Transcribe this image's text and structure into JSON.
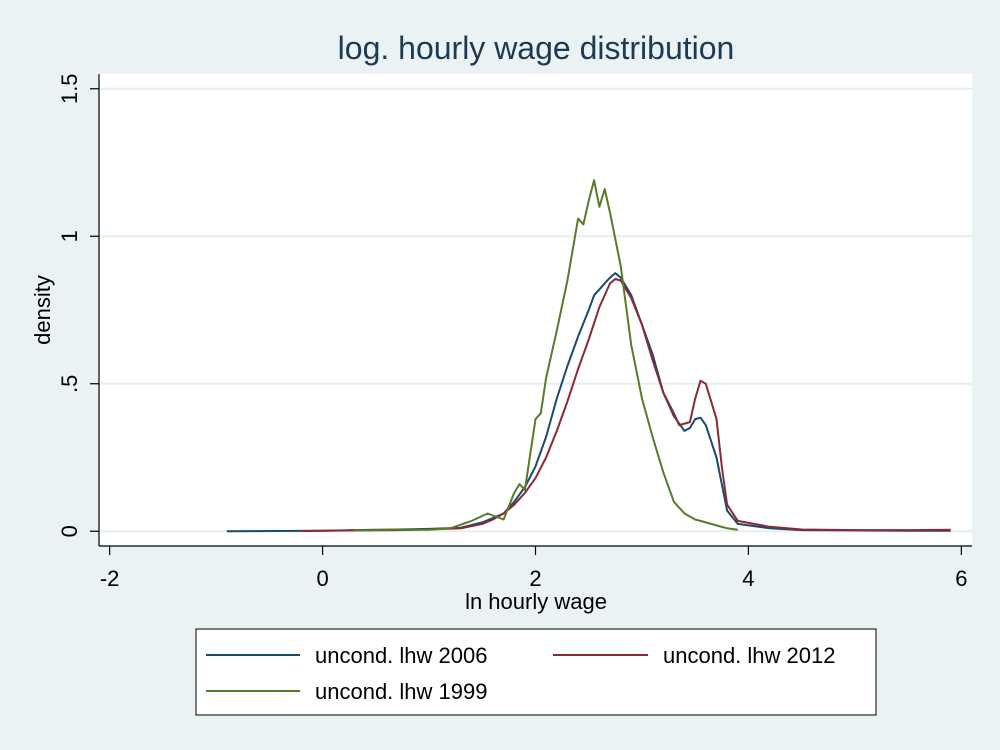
{
  "chart_data": {
    "type": "line",
    "title": "log. hourly wage distribution",
    "xlabel": "ln hourly wage",
    "ylabel": "density",
    "xlim": [
      -2.1,
      6.1
    ],
    "ylim": [
      -0.05,
      1.55
    ],
    "x_ticks": [
      -2,
      0,
      2,
      4,
      6
    ],
    "x_tick_labels": [
      "-2",
      "0",
      "2",
      "4",
      "6"
    ],
    "y_ticks": [
      0,
      0.5,
      1,
      1.5
    ],
    "y_tick_labels": [
      "0",
      ".5",
      "1",
      "1.5"
    ],
    "grid": "horizontal",
    "legend_position": "bottom",
    "colors": {
      "background": "#eaf2f3",
      "plot_area": "#ffffff",
      "grid": "#e6efef",
      "series_2006": "#1a4a6e",
      "series_2012": "#8b2a35",
      "series_1999": "#5a7a2a"
    },
    "series": [
      {
        "name": "uncond. lhw 2006",
        "color": "#1a4a6e",
        "points": [
          [
            -0.9,
            0.0
          ],
          [
            0.0,
            0.002
          ],
          [
            0.5,
            0.005
          ],
          [
            1.0,
            0.008
          ],
          [
            1.3,
            0.012
          ],
          [
            1.5,
            0.03
          ],
          [
            1.6,
            0.045
          ],
          [
            1.7,
            0.06
          ],
          [
            1.8,
            0.1
          ],
          [
            1.9,
            0.15
          ],
          [
            2.0,
            0.22
          ],
          [
            2.1,
            0.32
          ],
          [
            2.2,
            0.45
          ],
          [
            2.3,
            0.56
          ],
          [
            2.4,
            0.66
          ],
          [
            2.5,
            0.75
          ],
          [
            2.55,
            0.8
          ],
          [
            2.6,
            0.82
          ],
          [
            2.65,
            0.84
          ],
          [
            2.7,
            0.86
          ],
          [
            2.75,
            0.875
          ],
          [
            2.8,
            0.86
          ],
          [
            2.9,
            0.8
          ],
          [
            3.0,
            0.7
          ],
          [
            3.1,
            0.6
          ],
          [
            3.2,
            0.47
          ],
          [
            3.3,
            0.39
          ],
          [
            3.4,
            0.34
          ],
          [
            3.45,
            0.35
          ],
          [
            3.5,
            0.38
          ],
          [
            3.55,
            0.385
          ],
          [
            3.6,
            0.36
          ],
          [
            3.7,
            0.25
          ],
          [
            3.8,
            0.07
          ],
          [
            3.9,
            0.025
          ],
          [
            4.2,
            0.01
          ],
          [
            4.5,
            0.004
          ],
          [
            5.0,
            0.003
          ],
          [
            5.5,
            0.002
          ],
          [
            5.9,
            0.002
          ]
        ]
      },
      {
        "name": "uncond. lhw 2012",
        "color": "#8b2a35",
        "points": [
          [
            -0.2,
            0.001
          ],
          [
            0.3,
            0.003
          ],
          [
            0.7,
            0.004
          ],
          [
            1.0,
            0.006
          ],
          [
            1.3,
            0.01
          ],
          [
            1.5,
            0.025
          ],
          [
            1.6,
            0.04
          ],
          [
            1.7,
            0.06
          ],
          [
            1.8,
            0.09
          ],
          [
            1.9,
            0.13
          ],
          [
            2.0,
            0.18
          ],
          [
            2.1,
            0.25
          ],
          [
            2.2,
            0.34
          ],
          [
            2.3,
            0.44
          ],
          [
            2.4,
            0.55
          ],
          [
            2.5,
            0.65
          ],
          [
            2.6,
            0.76
          ],
          [
            2.7,
            0.84
          ],
          [
            2.75,
            0.855
          ],
          [
            2.8,
            0.85
          ],
          [
            2.9,
            0.79
          ],
          [
            3.0,
            0.7
          ],
          [
            3.1,
            0.58
          ],
          [
            3.2,
            0.47
          ],
          [
            3.3,
            0.4
          ],
          [
            3.35,
            0.36
          ],
          [
            3.45,
            0.37
          ],
          [
            3.5,
            0.45
          ],
          [
            3.55,
            0.51
          ],
          [
            3.6,
            0.5
          ],
          [
            3.7,
            0.38
          ],
          [
            3.75,
            0.22
          ],
          [
            3.8,
            0.09
          ],
          [
            3.9,
            0.035
          ],
          [
            4.2,
            0.015
          ],
          [
            4.5,
            0.006
          ],
          [
            5.0,
            0.004
          ],
          [
            5.5,
            0.004
          ],
          [
            5.9,
            0.005
          ]
        ]
      },
      {
        "name": "uncond. lhw 1999",
        "color": "#5a7a2a",
        "points": [
          [
            0.3,
            0.003
          ],
          [
            0.7,
            0.006
          ],
          [
            1.0,
            0.005
          ],
          [
            1.2,
            0.01
          ],
          [
            1.4,
            0.035
          ],
          [
            1.55,
            0.06
          ],
          [
            1.7,
            0.04
          ],
          [
            1.8,
            0.13
          ],
          [
            1.85,
            0.16
          ],
          [
            1.9,
            0.14
          ],
          [
            2.0,
            0.38
          ],
          [
            2.05,
            0.4
          ],
          [
            2.1,
            0.52
          ],
          [
            2.2,
            0.68
          ],
          [
            2.3,
            0.85
          ],
          [
            2.4,
            1.06
          ],
          [
            2.45,
            1.04
          ],
          [
            2.5,
            1.12
          ],
          [
            2.55,
            1.19
          ],
          [
            2.6,
            1.1
          ],
          [
            2.65,
            1.16
          ],
          [
            2.7,
            1.08
          ],
          [
            2.8,
            0.9
          ],
          [
            2.9,
            0.63
          ],
          [
            3.0,
            0.45
          ],
          [
            3.1,
            0.32
          ],
          [
            3.2,
            0.2
          ],
          [
            3.3,
            0.1
          ],
          [
            3.4,
            0.06
          ],
          [
            3.5,
            0.04
          ],
          [
            3.6,
            0.03
          ],
          [
            3.7,
            0.02
          ],
          [
            3.8,
            0.01
          ],
          [
            3.9,
            0.005
          ]
        ]
      }
    ]
  }
}
